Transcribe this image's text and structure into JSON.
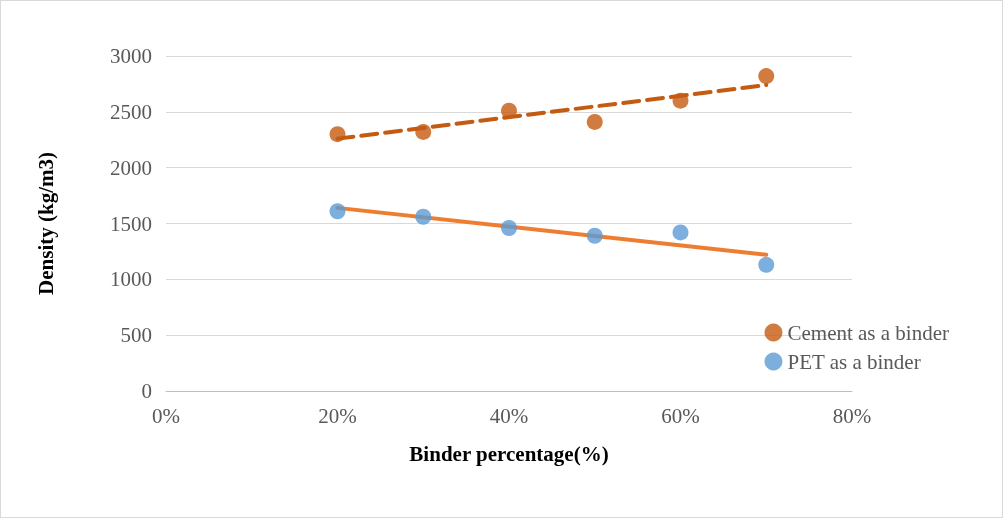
{
  "chart_data": {
    "type": "scatter",
    "xlabel": "Binder percentage(%)",
    "ylabel": "Density (kg/m3)",
    "xlim": [
      0,
      80
    ],
    "xticks": [
      {
        "value": 0,
        "label": "0%"
      },
      {
        "value": 20,
        "label": "20%"
      },
      {
        "value": 40,
        "label": "40%"
      },
      {
        "value": 60,
        "label": "60%"
      },
      {
        "value": 80,
        "label": "80%"
      }
    ],
    "ylim": [
      0,
      3000
    ],
    "yticks": [
      0,
      500,
      1000,
      1500,
      2000,
      2500,
      3000
    ],
    "grid": "y",
    "legend": "right",
    "marker": "circle",
    "series": [
      {
        "name": "Cement as a binder",
        "color": "#c55a11",
        "x": [
          20,
          30,
          40,
          50,
          60,
          70
        ],
        "values": [
          2300,
          2320,
          2510,
          2410,
          2600,
          2820
        ]
      },
      {
        "name": "PET as a binder",
        "color": "#5b9bd5",
        "x": [
          20,
          30,
          40,
          50,
          60,
          70
        ],
        "values": [
          1610,
          1560,
          1460,
          1390,
          1420,
          1130
        ]
      },
      {
        "type": "line",
        "color": "#c55a11",
        "line_style": "dashed",
        "marker": "none",
        "x": [
          20,
          70
        ],
        "values": [
          2260,
          2740
        ]
      },
      {
        "type": "line",
        "color": "#ed7d31",
        "line_style": "solid",
        "marker": "none",
        "x": [
          20,
          70
        ],
        "values": [
          1640,
          1220
        ]
      }
    ]
  }
}
